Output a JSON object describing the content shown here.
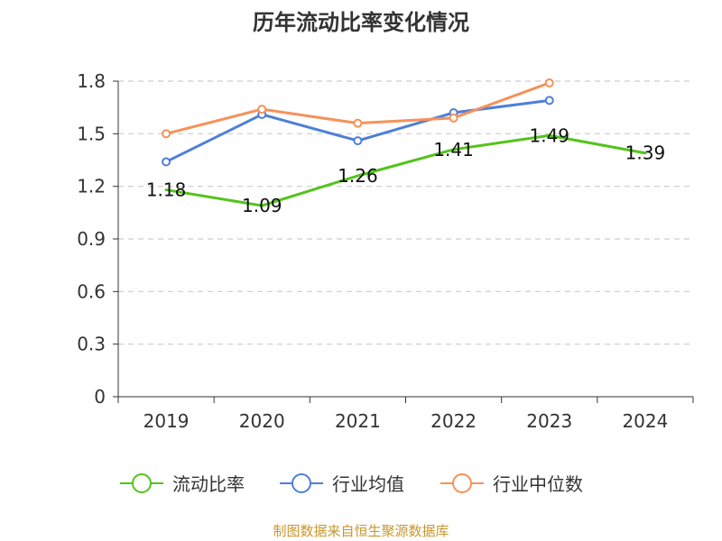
{
  "chart_data": {
    "type": "line",
    "title": "历年流动比率变化情况",
    "categories": [
      "2019",
      "2020",
      "2021",
      "2022",
      "2023",
      "2024"
    ],
    "ylim": [
      0,
      1.8
    ],
    "yticks": [
      0,
      0.3,
      0.6,
      0.9,
      1.2,
      1.5,
      1.8
    ],
    "ytick_labels": [
      "0",
      "0.3",
      "0.6",
      "0.9",
      "1.2",
      "1.5",
      "1.8"
    ],
    "grid": true,
    "legend_position": "bottom",
    "series": [
      {
        "name": "流动比率",
        "color": "#52c41a",
        "values": [
          1.18,
          1.09,
          1.26,
          1.41,
          1.49,
          1.39
        ],
        "labels": [
          "1.18",
          "1.09",
          "1.26",
          "1.41",
          "1.49",
          "1.39"
        ],
        "markers": false
      },
      {
        "name": "行业均值",
        "color": "#4e7fd8",
        "values": [
          1.34,
          1.61,
          1.46,
          1.62,
          1.69,
          null
        ],
        "markers": true
      },
      {
        "name": "行业中位数",
        "color": "#f5925a",
        "values": [
          1.5,
          1.64,
          1.56,
          1.59,
          1.79,
          null
        ],
        "markers": true
      }
    ],
    "source": "制图数据来自恒生聚源数据库",
    "source_color": "#c8962e"
  }
}
